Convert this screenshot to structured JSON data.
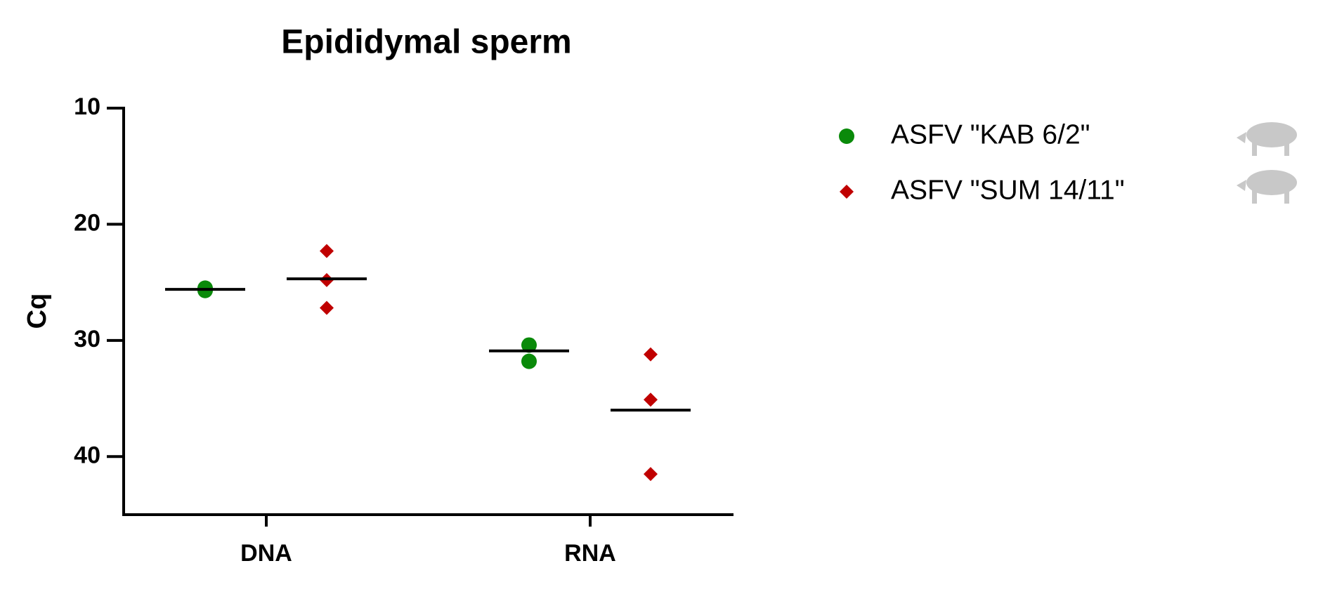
{
  "chart_data": {
    "type": "dotplot",
    "title": "Epididymal sperm",
    "y_label": "Cq",
    "categories": [
      "DNA",
      "RNA"
    ],
    "ylim": [
      10,
      45
    ],
    "yticks": [
      10,
      20,
      30,
      40
    ],
    "y_reversed": true,
    "series": [
      {
        "name": "ASFV \"KAB 6/2\"",
        "color": "#0a8a0a",
        "marker": "circle",
        "values": [
          [
            25.5,
            25.7
          ],
          [
            30.4,
            31.8
          ]
        ],
        "center_lines": [
          25.6,
          30.9
        ]
      },
      {
        "name": "ASFV \"SUM 14/11\"",
        "color": "#c00000",
        "marker": "diamond",
        "values": [
          [
            22.3,
            24.8,
            27.2
          ],
          [
            31.2,
            35.1,
            41.5
          ]
        ],
        "center_lines": [
          24.7,
          36.0
        ]
      }
    ]
  }
}
